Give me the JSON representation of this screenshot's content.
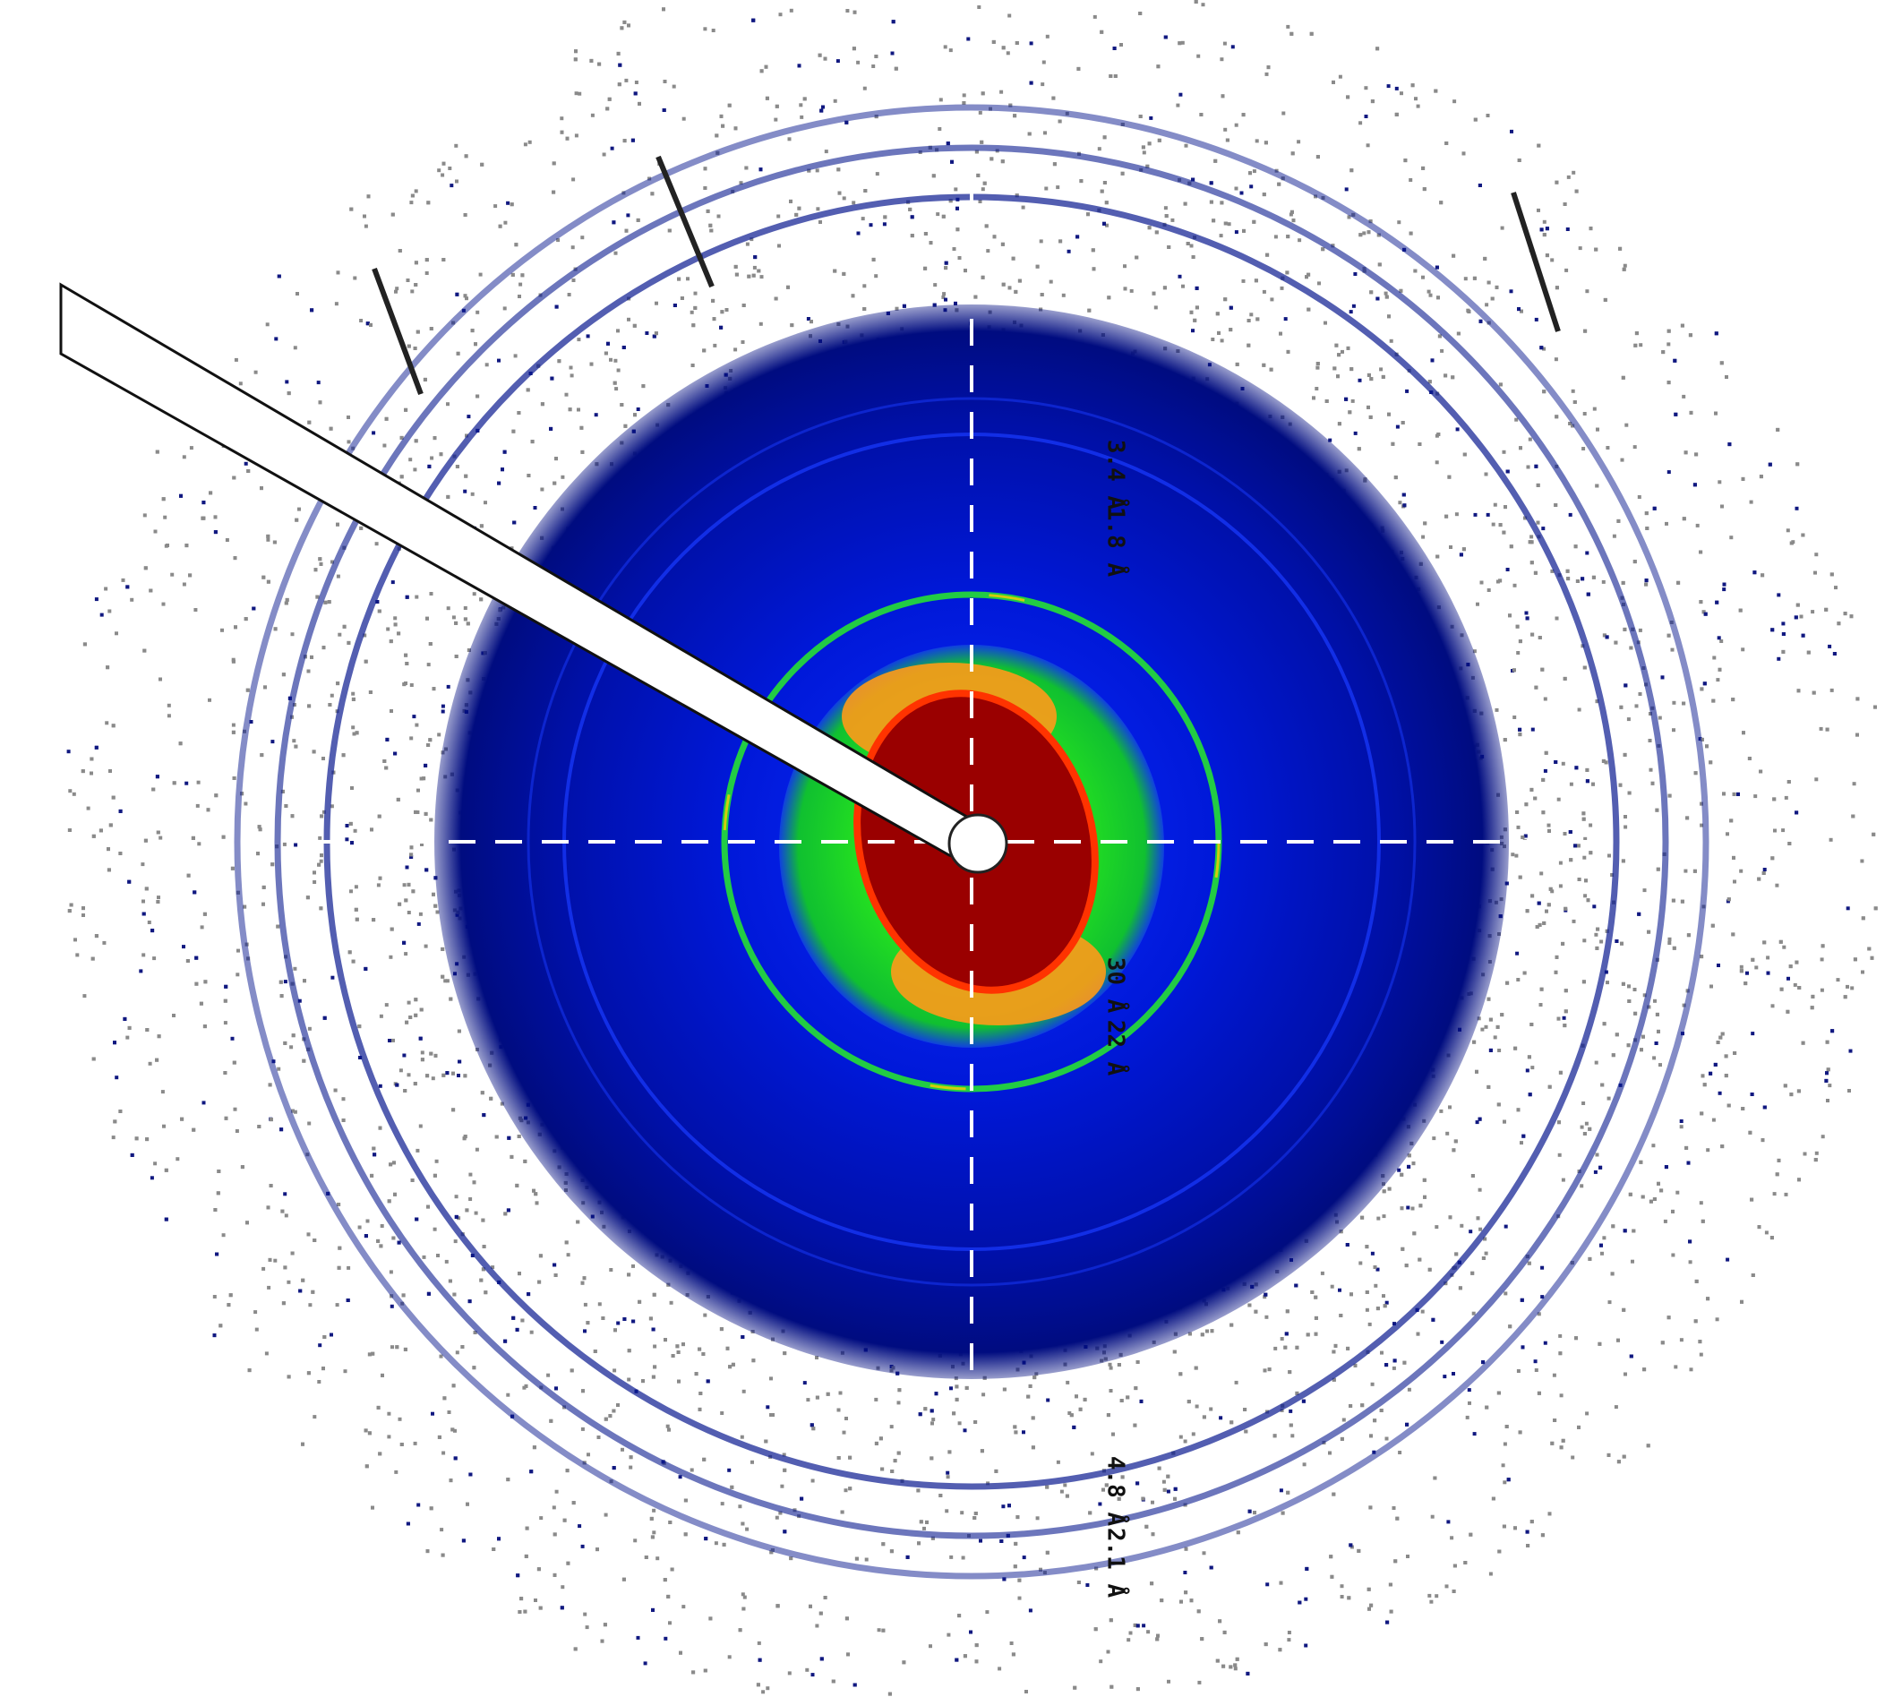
{
  "ring_labels": [
    "3.4 Å",
    "1.8 Å",
    "30 Å",
    "22 Å",
    "4.8 Å",
    "2.1 Å"
  ]
}
